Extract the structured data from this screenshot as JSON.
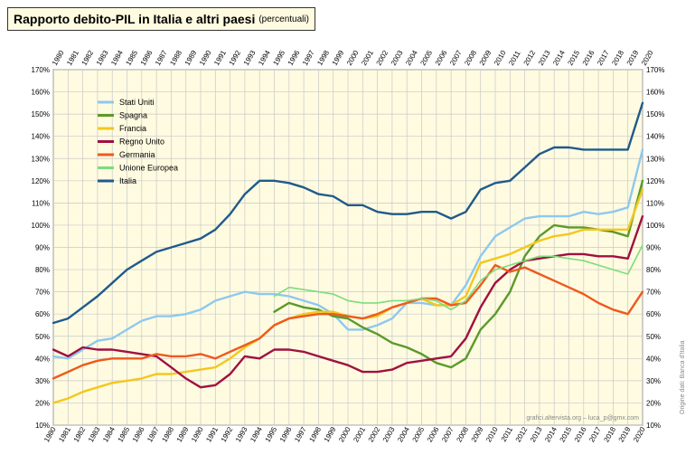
{
  "header": {
    "title": "Rapporto debito-PIL in Italia e altri paesi",
    "subtitle": "(percentuali)"
  },
  "credits": {
    "source": "Origine dati: Banca d'Italia",
    "author": "grafici.altervista.org – luca_p@gmx.com"
  },
  "colors": {
    "background": "#fffbe0",
    "grid": "#c8c8c8",
    "stati_uniti": "#8ec8ef",
    "spagna": "#5a9a2a",
    "francia": "#f2c81e",
    "regno_unito": "#a01040",
    "germania": "#ee5a1e",
    "unione_europea": "#7ddc7d",
    "italia": "#1f5a8c"
  },
  "chart_data": {
    "type": "line",
    "title": "Rapporto debito-PIL in Italia e altri paesi",
    "subtitle": "(percentuali)",
    "xlabel": "",
    "ylabel": "",
    "x": [
      "1980",
      "1981",
      "1982",
      "1983",
      "1984",
      "1985",
      "1986",
      "1987",
      "1988",
      "1989",
      "1990",
      "1991",
      "1992",
      "1993",
      "1994",
      "1995",
      "1996",
      "1997",
      "1998",
      "1999",
      "2000",
      "2001",
      "2002",
      "2003",
      "2004",
      "2005",
      "2006",
      "2007",
      "2008",
      "2009",
      "2010",
      "2011",
      "2012",
      "2013",
      "2014",
      "2015",
      "2016",
      "2017",
      "2018",
      "2019",
      "2020"
    ],
    "yticks": [
      "10%",
      "20%",
      "30%",
      "40%",
      "50%",
      "60%",
      "70%",
      "80%",
      "90%",
      "100%",
      "110%",
      "120%",
      "130%",
      "140%",
      "150%",
      "160%",
      "170%"
    ],
    "ylim": [
      10,
      170
    ],
    "grid": true,
    "legend_position": "top-left",
    "series": [
      {
        "name": "Stati Uniti",
        "color_key": "stati_uniti",
        "values": [
          41,
          40,
          44,
          48,
          49,
          53,
          57,
          59,
          59,
          60,
          62,
          66,
          68,
          70,
          69,
          69,
          68,
          66,
          64,
          60,
          53,
          53,
          55,
          58,
          65,
          65,
          64,
          64,
          73,
          86,
          95,
          99,
          103,
          104,
          104,
          104,
          106,
          105,
          106,
          108,
          134
        ]
      },
      {
        "name": "Spagna",
        "color_key": "spagna",
        "values": [
          null,
          null,
          null,
          null,
          null,
          null,
          null,
          null,
          null,
          null,
          null,
          null,
          null,
          null,
          null,
          61,
          65,
          63,
          62,
          59,
          58,
          54,
          51,
          47,
          45,
          42,
          38,
          36,
          40,
          53,
          60,
          70,
          86,
          95,
          100,
          99,
          99,
          98,
          97,
          95,
          120
        ]
      },
      {
        "name": "Francia",
        "color_key": "francia",
        "values": [
          20,
          22,
          25,
          27,
          29,
          30,
          31,
          33,
          33,
          34,
          35,
          36,
          40,
          45,
          49,
          55,
          58,
          60,
          61,
          61,
          59,
          58,
          59,
          63,
          65,
          67,
          64,
          64,
          68,
          83,
          85,
          87,
          90,
          93,
          95,
          96,
          98,
          98,
          98,
          98,
          116
        ]
      },
      {
        "name": "Regno Unito",
        "color_key": "regno_unito",
        "values": [
          44,
          41,
          45,
          44,
          44,
          43,
          42,
          41,
          36,
          31,
          27,
          28,
          33,
          41,
          40,
          44,
          44,
          43,
          41,
          39,
          37,
          34,
          34,
          35,
          38,
          39,
          40,
          41,
          49,
          63,
          74,
          80,
          84,
          85,
          86,
          87,
          87,
          86,
          86,
          85,
          104
        ]
      },
      {
        "name": "Germania",
        "color_key": "germania",
        "values": [
          31,
          34,
          37,
          39,
          40,
          40,
          40,
          42,
          41,
          41,
          42,
          40,
          43,
          46,
          49,
          55,
          58,
          59,
          60,
          60,
          59,
          58,
          60,
          63,
          65,
          67,
          67,
          64,
          65,
          73,
          82,
          79,
          81,
          78,
          75,
          72,
          69,
          65,
          62,
          60,
          70
        ]
      },
      {
        "name": "Unione Europea",
        "color_key": "unione_europea",
        "values": [
          null,
          null,
          null,
          null,
          null,
          null,
          null,
          null,
          null,
          null,
          null,
          null,
          null,
          null,
          null,
          68,
          72,
          71,
          70,
          69,
          66,
          65,
          65,
          66,
          66,
          67,
          66,
          62,
          66,
          75,
          80,
          82,
          84,
          86,
          86,
          85,
          84,
          82,
          80,
          78,
          91
        ]
      },
      {
        "name": "Italia",
        "color_key": "italia",
        "values": [
          56,
          58,
          63,
          68,
          74,
          80,
          84,
          88,
          90,
          92,
          94,
          98,
          105,
          114,
          120,
          120,
          119,
          117,
          114,
          113,
          109,
          109,
          106,
          105,
          105,
          106,
          106,
          103,
          106,
          116,
          119,
          120,
          126,
          132,
          135,
          135,
          134,
          134,
          134,
          134,
          155
        ]
      }
    ]
  }
}
